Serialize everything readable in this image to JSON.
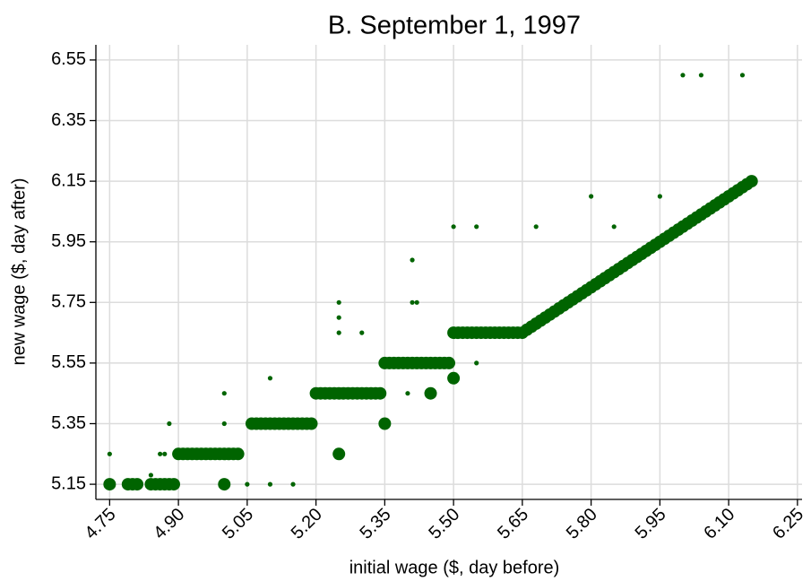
{
  "chart_data": {
    "type": "scatter",
    "title": "B. September 1, 1997",
    "x_label": "initial wage ($, day before)",
    "y_label": "new wage ($, day after)",
    "xlim": [
      4.72,
      6.26
    ],
    "xticks": [
      4.75,
      {
        "value": 4.9,
        "label": "4.90"
      },
      5.05,
      {
        "value": 5.2,
        "label": "5.20"
      },
      5.35,
      {
        "value": 5.5,
        "label": "5.50"
      },
      5.65,
      {
        "value": 5.8,
        "label": "5.80"
      },
      5.95,
      {
        "value": 6.1,
        "label": "6.10"
      },
      6.25
    ],
    "ylim": [
      5.1,
      6.6
    ],
    "yticks": [
      5.15,
      5.35,
      5.55,
      5.75,
      5.95,
      6.15,
      6.35,
      6.55
    ],
    "grid": true,
    "series": [
      {
        "color": "#006400",
        "x": [
          4.75,
          4.79,
          4.8,
          4.81,
          4.84,
          4.85,
          4.86,
          4.87,
          4.88,
          4.89,
          5.0,
          4.9,
          4.91,
          4.92,
          4.93,
          4.94,
          4.95,
          4.96,
          4.97,
          4.98,
          4.99,
          5.0,
          5.01,
          5.02,
          5.03,
          5.25,
          5.06,
          5.07,
          5.08,
          5.09,
          5.1,
          5.11,
          5.12,
          5.13,
          5.14,
          5.15,
          5.16,
          5.17,
          5.18,
          5.19,
          5.35,
          5.2,
          5.21,
          5.22,
          5.23,
          5.24,
          5.25,
          5.26,
          5.27,
          5.28,
          5.29,
          5.3,
          5.31,
          5.32,
          5.33,
          5.34,
          5.45,
          5.35,
          5.36,
          5.37,
          5.38,
          5.39,
          5.4,
          5.41,
          5.42,
          5.43,
          5.44,
          5.45,
          5.46,
          5.47,
          5.48,
          5.49,
          5.5,
          5.5,
          5.51,
          5.52,
          5.53,
          5.54,
          5.55,
          5.56,
          5.57,
          5.58,
          5.59,
          5.6,
          5.61,
          5.62,
          5.63,
          5.64,
          5.65,
          5.66,
          5.67,
          5.68,
          5.69,
          5.7,
          5.71,
          5.72,
          5.73,
          5.74,
          5.75,
          5.76,
          5.77,
          5.78,
          5.79,
          5.8,
          5.81,
          5.82,
          5.83,
          5.84,
          5.85,
          5.86,
          5.87,
          5.88,
          5.89,
          5.9,
          5.91,
          5.92,
          5.93,
          5.94,
          5.95,
          5.96,
          5.97,
          5.98,
          5.99,
          6.0,
          6.01,
          6.02,
          6.03,
          6.04,
          6.05,
          6.06,
          6.07,
          6.08,
          6.09,
          6.1,
          6.11,
          6.12,
          6.13,
          6.14,
          6.15
        ],
        "values": [
          5.15,
          5.15,
          5.15,
          5.15,
          5.15,
          5.15,
          5.15,
          5.15,
          5.15,
          5.15,
          5.15,
          5.25,
          5.25,
          5.25,
          5.25,
          5.25,
          5.25,
          5.25,
          5.25,
          5.25,
          5.25,
          5.25,
          5.25,
          5.25,
          5.25,
          5.25,
          5.35,
          5.35,
          5.35,
          5.35,
          5.35,
          5.35,
          5.35,
          5.35,
          5.35,
          5.35,
          5.35,
          5.35,
          5.35,
          5.35,
          5.35,
          5.45,
          5.45,
          5.45,
          5.45,
          5.45,
          5.45,
          5.45,
          5.45,
          5.45,
          5.45,
          5.45,
          5.45,
          5.45,
          5.45,
          5.45,
          5.45,
          5.55,
          5.55,
          5.55,
          5.55,
          5.55,
          5.55,
          5.55,
          5.55,
          5.55,
          5.55,
          5.55,
          5.55,
          5.55,
          5.55,
          5.55,
          5.5,
          5.65,
          5.65,
          5.65,
          5.65,
          5.65,
          5.65,
          5.65,
          5.65,
          5.65,
          5.65,
          5.65,
          5.65,
          5.65,
          5.65,
          5.65,
          5.65,
          5.66,
          5.67,
          5.68,
          5.69,
          5.7,
          5.71,
          5.72,
          5.73,
          5.74,
          5.75,
          5.76,
          5.77,
          5.78,
          5.79,
          5.8,
          5.81,
          5.82,
          5.83,
          5.84,
          5.85,
          5.86,
          5.87,
          5.88,
          5.89,
          5.9,
          5.91,
          5.92,
          5.93,
          5.94,
          5.95,
          5.96,
          5.97,
          5.98,
          5.99,
          6.0,
          6.01,
          6.02,
          6.03,
          6.04,
          6.05,
          6.06,
          6.07,
          6.08,
          6.09,
          6.1,
          6.11,
          6.12,
          6.13,
          6.14,
          6.15
        ]
      },
      {
        "color": "#006400",
        "x": [
          4.75,
          4.84,
          4.86,
          4.87,
          4.88,
          5.0,
          5.0,
          5.05,
          5.1,
          5.1,
          5.15,
          5.25,
          5.25,
          5.25,
          5.3,
          5.4,
          5.41,
          5.41,
          5.42,
          5.5,
          5.55,
          5.55,
          5.68,
          5.8,
          5.85,
          5.95,
          6.0,
          6.04,
          6.13
        ],
        "values": [
          5.25,
          5.18,
          5.25,
          5.25,
          5.35,
          5.45,
          5.35,
          5.15,
          5.5,
          5.15,
          5.15,
          5.75,
          5.7,
          5.65,
          5.65,
          5.45,
          5.89,
          5.75,
          5.75,
          6.0,
          6.0,
          5.55,
          6.0,
          6.1,
          6.0,
          6.1,
          6.5,
          6.5,
          6.5
        ]
      }
    ]
  }
}
